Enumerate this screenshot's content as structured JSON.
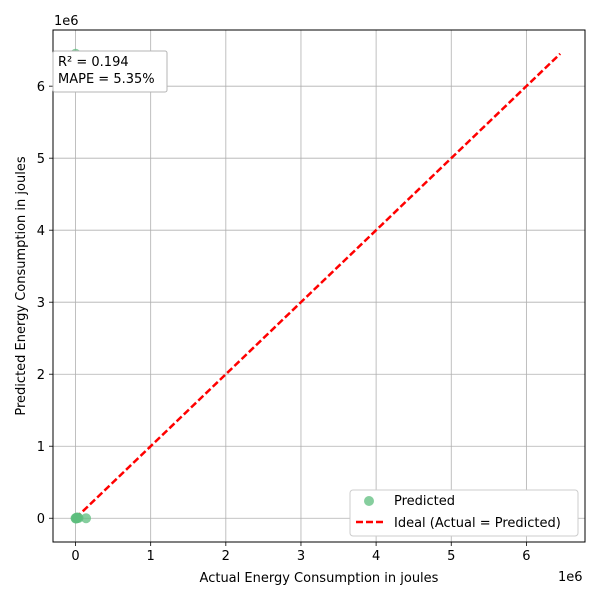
{
  "chart_data": {
    "type": "scatter",
    "title": "",
    "xlabel": "Actual Energy Consumption in joules",
    "ylabel": "Predicted Energy Consumption in joules",
    "x_offset_label": "1e6",
    "y_offset_label": "1e6",
    "xlim": [
      -300000,
      6780000
    ],
    "ylim": [
      -330000,
      6780000
    ],
    "xticks": [
      0,
      1000000,
      2000000,
      3000000,
      4000000,
      5000000,
      6000000
    ],
    "xtick_labels": [
      "0",
      "1",
      "2",
      "3",
      "4",
      "5",
      "6"
    ],
    "yticks": [
      0,
      1000000,
      2000000,
      3000000,
      4000000,
      5000000,
      6000000
    ],
    "ytick_labels": [
      "0",
      "1",
      "2",
      "3",
      "4",
      "5",
      "6"
    ],
    "grid": true,
    "series": [
      {
        "name": "Predicted",
        "kind": "scatter",
        "color": "#5dbe7e",
        "points": [
          {
            "x": 0,
            "y": 6450000
          },
          {
            "x": 0,
            "y": 0
          },
          {
            "x": 10000,
            "y": 5000
          },
          {
            "x": 20000,
            "y": 0
          },
          {
            "x": 30000,
            "y": 10000
          },
          {
            "x": 5000,
            "y": -5000
          },
          {
            "x": 15000,
            "y": 8000
          },
          {
            "x": 40000,
            "y": 3000
          },
          {
            "x": 140000,
            "y": 0
          }
        ]
      },
      {
        "name": "Ideal (Actual = Predicted)",
        "kind": "line",
        "style": "dashed",
        "color": "#ff0000",
        "x": [
          0,
          6450000
        ],
        "y": [
          0,
          6450000
        ]
      }
    ],
    "annotation_lines": [
      "R² = 0.194",
      "MAPE = 5.35%"
    ],
    "legend_position": "lower-right"
  }
}
